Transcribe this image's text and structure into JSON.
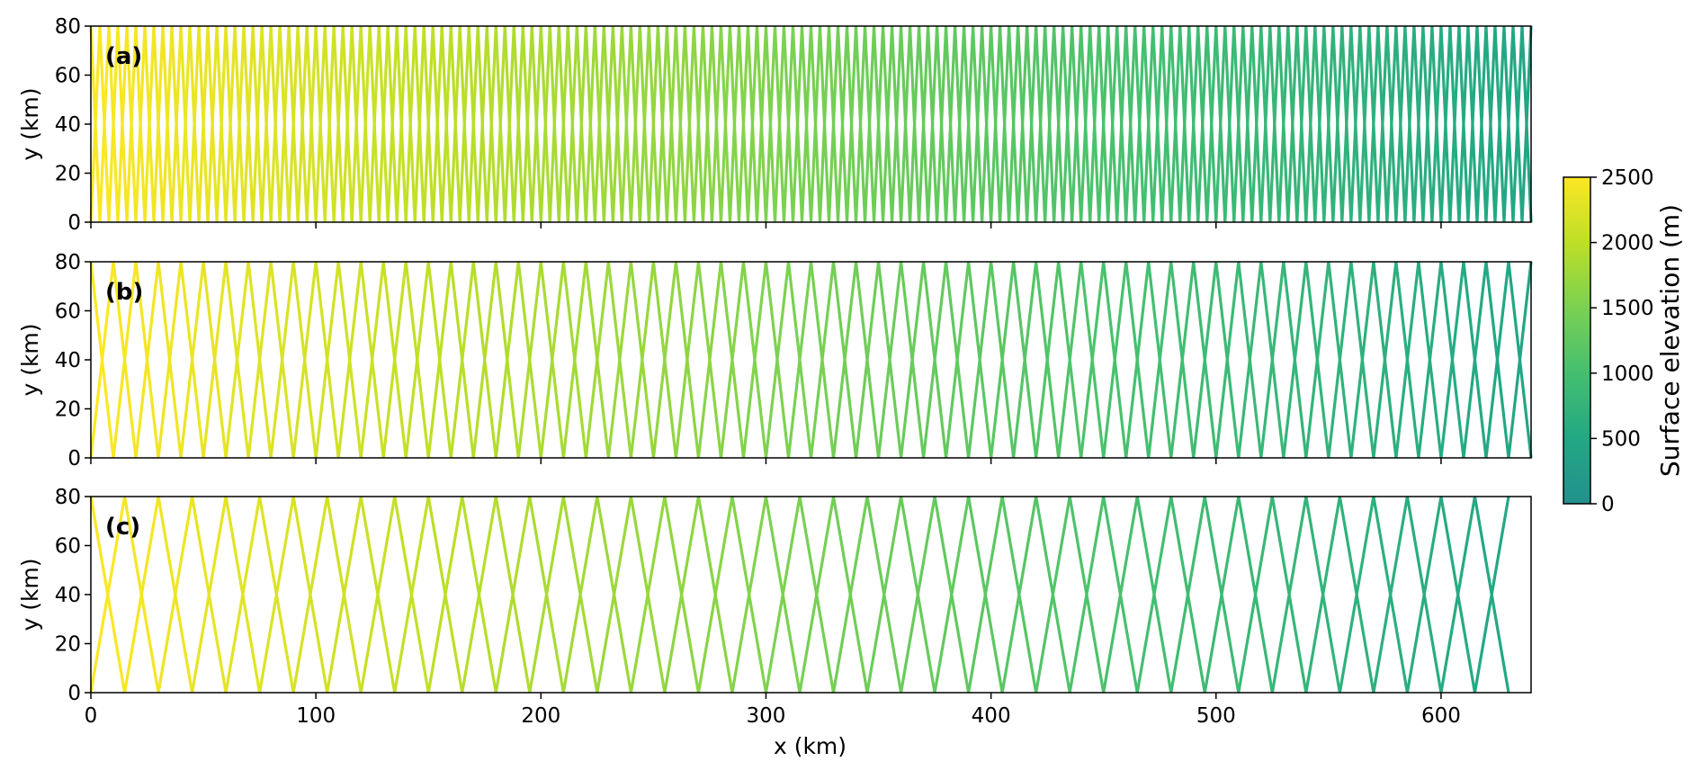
{
  "chart_data": [
    {
      "type": "line",
      "panel_label": "(a)",
      "description_of_marks": "zigzag flight lines bouncing between y=0 and y=80, colored by surface elevation",
      "vertex_spacing_km": 4,
      "x_range": [
        0,
        640
      ],
      "xlim": [
        0,
        640
      ],
      "ylim": [
        0,
        80
      ],
      "xticks": [
        0,
        100,
        200,
        300,
        400,
        500,
        600
      ],
      "yticks": [
        0,
        20,
        40,
        60,
        80
      ],
      "ylabel": "y (km)",
      "xlabel": "",
      "elevation_at_x0_m": 2500,
      "elevation_at_x640_m": 450
    },
    {
      "type": "line",
      "panel_label": "(b)",
      "description_of_marks": "zigzag flight lines bouncing between y=0 and y=80, colored by surface elevation",
      "vertex_spacing_km": 10,
      "x_range": [
        0,
        640
      ],
      "xlim": [
        0,
        640
      ],
      "ylim": [
        0,
        80
      ],
      "xticks": [
        0,
        100,
        200,
        300,
        400,
        500,
        600
      ],
      "yticks": [
        0,
        20,
        40,
        60,
        80
      ],
      "ylabel": "y (km)",
      "xlabel": "",
      "elevation_at_x0_m": 2500,
      "elevation_at_x640_m": 450
    },
    {
      "type": "line",
      "panel_label": "(c)",
      "description_of_marks": "zigzag flight lines bouncing between y=0 and y=80, colored by surface elevation",
      "vertex_spacing_km": 15,
      "x_range": [
        0,
        630
      ],
      "xlim": [
        0,
        640
      ],
      "ylim": [
        0,
        80
      ],
      "xticks": [
        0,
        100,
        200,
        300,
        400,
        500,
        600
      ],
      "yticks": [
        0,
        20,
        40,
        60,
        80
      ],
      "ylabel": "y (km)",
      "xlabel": "x (km)",
      "elevation_at_x0_m": 2500,
      "elevation_at_x640_m": 450
    }
  ],
  "colorbar": {
    "label": "Surface elevation (m)",
    "range": [
      0,
      2500
    ],
    "ticks": [
      0,
      500,
      1000,
      1500,
      2000,
      2500
    ],
    "color_stops": [
      "#21918c",
      "#22a884",
      "#44bf70",
      "#7ad151",
      "#bddf26",
      "#fde725"
    ]
  }
}
